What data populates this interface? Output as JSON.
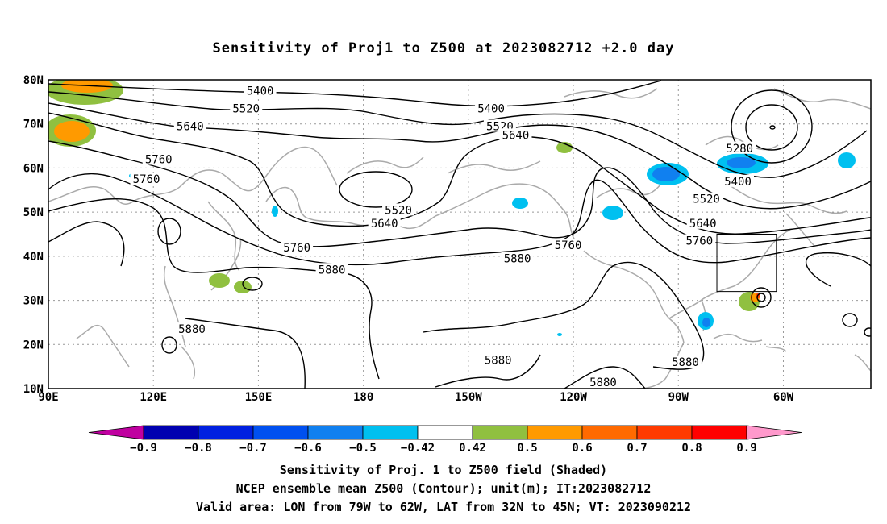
{
  "title": "Sensitivity of Proj1 to Z500 at 2023082712 +2.0 day",
  "lat_labels": [
    "80N",
    "70N",
    "60N",
    "50N",
    "40N",
    "30N",
    "20N",
    "10N"
  ],
  "lon_labels": [
    "90E",
    "120E",
    "150E",
    "180",
    "150W",
    "120W",
    "90W",
    "60W"
  ],
  "contour_labels": [
    {
      "text": "5400",
      "lon": 150.5,
      "lat": 77.5
    },
    {
      "text": "5400",
      "lon": -143.5,
      "lat": 73.5
    },
    {
      "text": "5520",
      "lon": 146.5,
      "lat": 73.5
    },
    {
      "text": "5520",
      "lon": -141,
      "lat": 69.5
    },
    {
      "text": "5640",
      "lon": 130.5,
      "lat": 69.5
    },
    {
      "text": "5640",
      "lon": -136.5,
      "lat": 67.5
    },
    {
      "text": "5760",
      "lon": 121.5,
      "lat": 62
    },
    {
      "text": "5760",
      "lon": 118,
      "lat": 57.5
    },
    {
      "text": "5280",
      "lon": -72.5,
      "lat": 64.5
    },
    {
      "text": "5400",
      "lon": -73,
      "lat": 57
    },
    {
      "text": "5520",
      "lon": -82,
      "lat": 53
    },
    {
      "text": "5640",
      "lon": -83,
      "lat": 47.5
    },
    {
      "text": "5760",
      "lon": -84,
      "lat": 43.5
    },
    {
      "text": "5520",
      "lon": -170,
      "lat": 50.5
    },
    {
      "text": "5640",
      "lon": -174,
      "lat": 47.5
    },
    {
      "text": "5760",
      "lon": 161,
      "lat": 42
    },
    {
      "text": "5760",
      "lon": -121.5,
      "lat": 42.5
    },
    {
      "text": "5880",
      "lon": -136,
      "lat": 39.5
    },
    {
      "text": "5880",
      "lon": 171,
      "lat": 37
    },
    {
      "text": "5880",
      "lon": 131,
      "lat": 23.5
    },
    {
      "text": "5880",
      "lon": -141.5,
      "lat": 16.5
    },
    {
      "text": "5880",
      "lon": -88,
      "lat": 16
    },
    {
      "text": "5880",
      "lon": -111.5,
      "lat": 11.5
    }
  ],
  "valid_area": {
    "lon_min": -79,
    "lon_max": -62,
    "lat_min": 32,
    "lat_max": 45
  },
  "sensitivity_colors": {
    "-0.9": "#c000a0",
    "-0.8": "#0000b0",
    "-0.7": "#0020e0",
    "-0.6": "#0050f0",
    "-0.5": "#1080f0",
    "-0.42": "#00c0f0",
    "0.42": "#ffffff",
    "0.5": "#90c040",
    "0.6": "#ff9a00",
    "0.7": "#ff6a00",
    "0.8": "#ff3a00",
    "0.9": "#ff0000",
    "over": "#ff99cc"
  },
  "colorbar": {
    "labels": [
      "-0.9",
      "-0.8",
      "-0.7",
      "-0.6",
      "-0.5",
      "-0.42",
      "0.42",
      "0.5",
      "0.6",
      "0.7",
      "0.8",
      "0.9"
    ],
    "colors": [
      "#0000b0",
      "#0020e0",
      "#0050f0",
      "#1080f0",
      "#00c0f0",
      "#ffffff",
      "#90c040",
      "#ff9a00",
      "#ff6a00",
      "#ff3a00",
      "#ff0000"
    ],
    "under_color": "#c000a0",
    "over_color": "#ff99cc"
  },
  "captions": [
    "Sensitivity of Proj. 1 to Z500 field (Shaded)",
    "NCEP ensemble mean Z500 (Contour); unit(m); IT:2023082712",
    "Valid area: LON from 79W to 62W, LAT from 32N to 45N; VT: 2023090212"
  ]
}
